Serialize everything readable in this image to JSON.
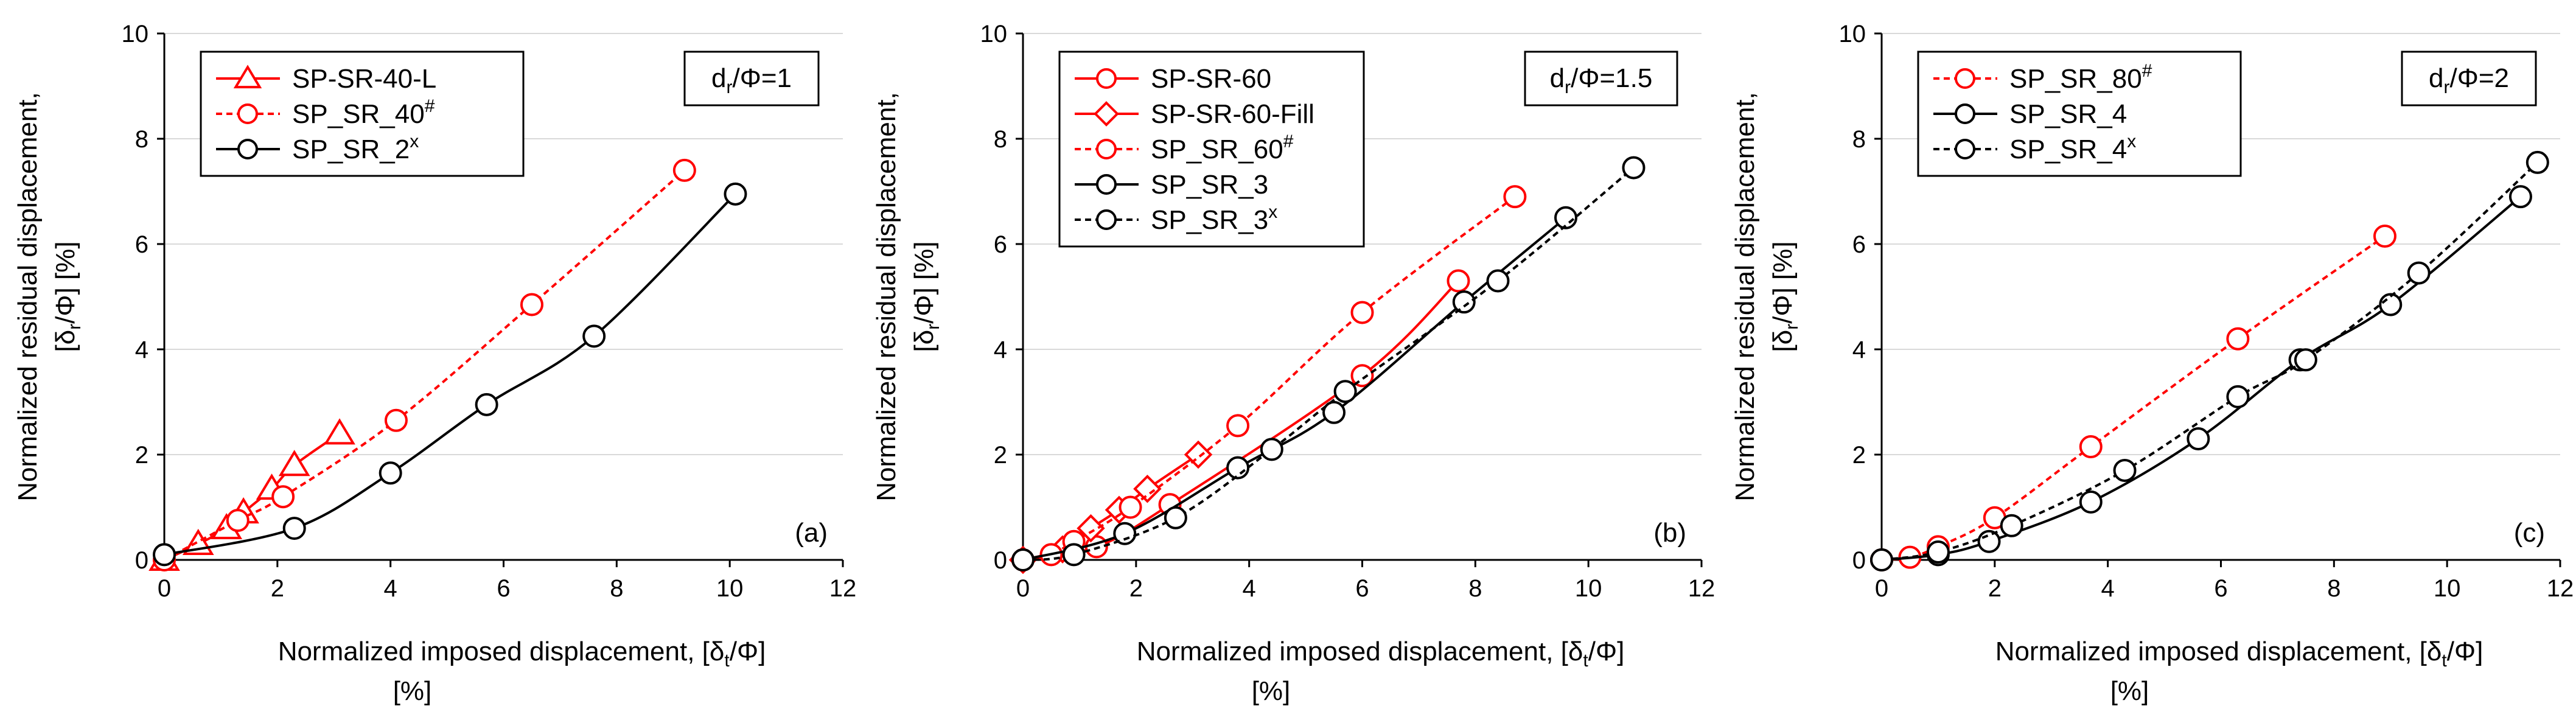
{
  "chart_data": [
    {
      "type": "line",
      "panel_label": "(a)",
      "annotation": {
        "text": "d",
        "sub": "r",
        "suffix": "/Φ=1"
      },
      "xlabel_line1": "Normalized imposed displacement, [δ",
      "xlabel_sub": "t",
      "xlabel_tail": "/Φ]",
      "xlabel_line2": "[%]",
      "ylabel_line1": "Normalized residual displacement,",
      "ylabel_line2_pre": "[δ",
      "ylabel_line2_sub": "r",
      "ylabel_line2_tail": "/Φ] [%]",
      "xlim": [
        0,
        12
      ],
      "ylim": [
        0,
        10
      ],
      "xticks": [
        "0",
        "2",
        "4",
        "6",
        "8",
        "10",
        "12"
      ],
      "yticks": [
        "0",
        "2",
        "4",
        "6",
        "8",
        "10"
      ],
      "series": [
        {
          "name": "SP-SR-40-L",
          "name_sup": "",
          "color": "#ff0000",
          "dash": "solid",
          "marker": "triangle",
          "x": [
            0,
            0.6,
            1.1,
            1.4,
            1.9,
            2.3,
            3.1
          ],
          "y": [
            0,
            0.3,
            0.6,
            0.9,
            1.35,
            1.8,
            2.4
          ]
        },
        {
          "name": "SP_SR_40",
          "name_sup": "#",
          "color": "#ff0000",
          "dash": "dotted",
          "marker": "circle",
          "x": [
            0,
            1.3,
            2.1,
            4.1,
            6.5,
            9.2
          ],
          "y": [
            0,
            0.75,
            1.2,
            2.65,
            4.85,
            7.4
          ]
        },
        {
          "name": "SP_SR_2",
          "name_sup": "x",
          "color": "#000000",
          "dash": "solid",
          "marker": "circle",
          "x": [
            0,
            2.3,
            4.0,
            5.7,
            7.6,
            10.1
          ],
          "y": [
            0.1,
            0.6,
            1.65,
            2.95,
            4.25,
            6.95
          ]
        }
      ]
    },
    {
      "type": "line",
      "panel_label": "(b)",
      "annotation": {
        "text": "d",
        "sub": "r",
        "suffix": "/Φ=1.5"
      },
      "xlabel_line1": "Normalized imposed displacement, [δ",
      "xlabel_sub": "t",
      "xlabel_tail": "/Φ]",
      "xlabel_line2": "[%]",
      "ylabel_line1": "Normalized residual displacement,",
      "ylabel_line2_pre": "[δ",
      "ylabel_line2_sub": "r",
      "ylabel_line2_tail": "/Φ] [%]",
      "xlim": [
        0,
        12
      ],
      "ylim": [
        0,
        10
      ],
      "xticks": [
        "0",
        "2",
        "4",
        "6",
        "8",
        "10",
        "12"
      ],
      "yticks": [
        "0",
        "2",
        "4",
        "6",
        "8",
        "10"
      ],
      "series": [
        {
          "name": "SP-SR-60",
          "name_sup": "",
          "color": "#ff0000",
          "dash": "solid",
          "marker": "circle",
          "x": [
            0,
            1.3,
            2.6,
            6.0,
            7.7
          ],
          "y": [
            0,
            0.25,
            1.05,
            3.5,
            5.3
          ]
        },
        {
          "name": "SP-SR-60-Fill",
          "name_sup": "",
          "color": "#ff0000",
          "dash": "solid",
          "marker": "diamond",
          "x": [
            0,
            0.7,
            1.2,
            1.7,
            2.2,
            3.1
          ],
          "y": [
            0,
            0.2,
            0.6,
            0.95,
            1.35,
            2.0
          ]
        },
        {
          "name": "SP_SR_60",
          "name_sup": "#",
          "color": "#ff0000",
          "dash": "dotted",
          "marker": "circle",
          "x": [
            0,
            0.5,
            0.9,
            1.9,
            3.8,
            6.0,
            8.7
          ],
          "y": [
            0,
            0.1,
            0.35,
            1.0,
            2.55,
            4.7,
            6.9
          ]
        },
        {
          "name": "SP_SR_3",
          "name_sup": "",
          "color": "#000000",
          "dash": "solid",
          "marker": "circle",
          "x": [
            0,
            1.8,
            3.8,
            5.5,
            7.8,
            9.6
          ],
          "y": [
            0,
            0.5,
            1.75,
            2.8,
            4.9,
            6.5
          ]
        },
        {
          "name": "SP_SR_3",
          "name_sup": "x",
          "color": "#000000",
          "dash": "dotted",
          "marker": "circle",
          "x": [
            0,
            0.9,
            2.7,
            4.4,
            5.7,
            8.4,
            10.8
          ],
          "y": [
            0,
            0.1,
            0.8,
            2.1,
            3.2,
            5.3,
            7.45
          ]
        }
      ]
    },
    {
      "type": "line",
      "panel_label": "(c)",
      "annotation": {
        "text": "d",
        "sub": "r",
        "suffix": "/Φ=2"
      },
      "xlabel_line1": "Normalized imposed displacement, [δ",
      "xlabel_sub": "t",
      "xlabel_tail": "/Φ]",
      "xlabel_line2": "[%]",
      "ylabel_line1": "Normalized residual displacement,",
      "ylabel_line2_pre": "[δ",
      "ylabel_line2_sub": "r",
      "ylabel_line2_tail": "/Φ] [%]",
      "xlim": [
        0,
        12
      ],
      "ylim": [
        0,
        10
      ],
      "xticks": [
        "0",
        "2",
        "4",
        "6",
        "8",
        "10",
        "12"
      ],
      "yticks": [
        "0",
        "2",
        "4",
        "6",
        "8",
        "10"
      ],
      "series": [
        {
          "name": "SP_SR_80",
          "name_sup": "#",
          "color": "#ff0000",
          "dash": "dotted",
          "marker": "circle",
          "x": [
            0,
            0.5,
            1.0,
            2.0,
            3.7,
            6.3,
            8.9
          ],
          "y": [
            0,
            0.05,
            0.25,
            0.8,
            2.15,
            4.2,
            6.15
          ]
        },
        {
          "name": "SP_SR_4",
          "name_sup": "",
          "color": "#000000",
          "dash": "solid",
          "marker": "circle",
          "x": [
            0,
            1.0,
            1.9,
            3.7,
            5.6,
            7.4,
            9.0,
            11.3
          ],
          "y": [
            0,
            0.1,
            0.35,
            1.1,
            2.3,
            3.8,
            4.85,
            6.9
          ]
        },
        {
          "name": "SP_SR_4",
          "name_sup": "x",
          "color": "#000000",
          "dash": "dotted",
          "marker": "circle",
          "x": [
            0,
            1.0,
            2.3,
            4.3,
            6.3,
            7.5,
            9.5,
            11.6
          ],
          "y": [
            0,
            0.15,
            0.65,
            1.7,
            3.1,
            3.8,
            5.45,
            7.55
          ]
        }
      ]
    }
  ]
}
